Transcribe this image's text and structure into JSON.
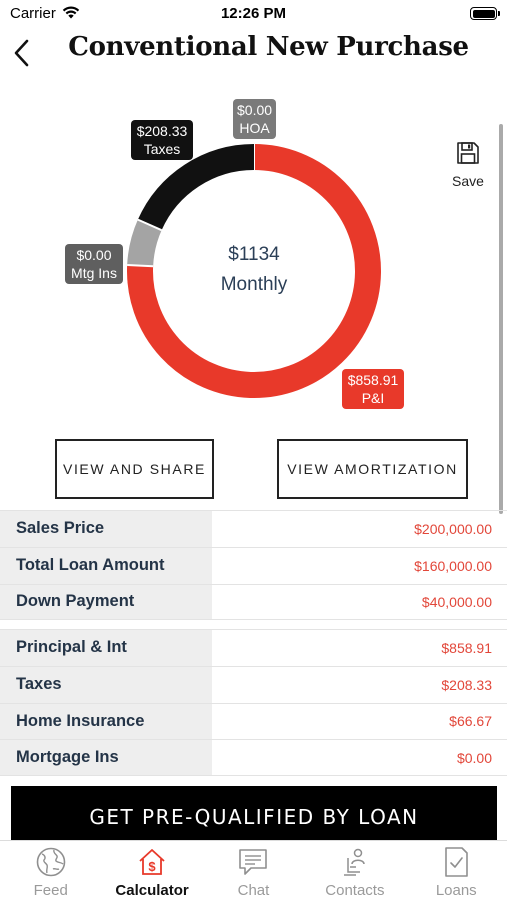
{
  "status_bar": {
    "carrier": "Carrier",
    "time": "12:26 PM"
  },
  "nav": {
    "title": "Conventional New Purchase",
    "back_icon": "chevron-left-icon"
  },
  "chart_data": {
    "type": "pie",
    "donut": true,
    "center_amount": "$1134",
    "center_label": "Monthly",
    "slices": [
      {
        "name": "HOA",
        "value": 0.0,
        "value_label": "$0.00",
        "color": "#7a7a7a"
      },
      {
        "name": "P&I",
        "value": 858.91,
        "value_label": "$858.91",
        "color": "#e8392a"
      },
      {
        "name": "Mtg Ins",
        "value": 0.0,
        "value_label": "$0.00",
        "color": "#5f5f5f"
      },
      {
        "name": "Home Insurance",
        "value": 66.67,
        "value_label": "",
        "color": "#a4a4a4"
      },
      {
        "name": "Taxes",
        "value": 208.33,
        "value_label": "$208.33",
        "color": "#111111"
      }
    ]
  },
  "save": {
    "label": "Save",
    "icon": "save-icon"
  },
  "buttons": {
    "view_share": "VIEW AND SHARE",
    "view_amortization": "VIEW AMORTIZATION"
  },
  "table_loan": [
    {
      "label": "Sales Price",
      "value": "$200,000.00"
    },
    {
      "label": "Total Loan Amount",
      "value": "$160,000.00"
    },
    {
      "label": "Down Payment",
      "value": "$40,000.00"
    }
  ],
  "table_payment": [
    {
      "label": "Principal & Int",
      "value": "$858.91"
    },
    {
      "label": "Taxes",
      "value": "$208.33"
    },
    {
      "label": "Home Insurance",
      "value": "$66.67"
    },
    {
      "label": "Mortgage Ins",
      "value": "$0.00"
    }
  ],
  "cta": {
    "label": "GET PRE-QUALIFIED BY LOAN"
  },
  "tabs": [
    {
      "label": "Feed",
      "icon": "globe-icon",
      "active": false
    },
    {
      "label": "Calculator",
      "icon": "calculator-house-icon",
      "active": true
    },
    {
      "label": "Chat",
      "icon": "chat-icon",
      "active": false
    },
    {
      "label": "Contacts",
      "icon": "contacts-icon",
      "active": false
    },
    {
      "label": "Loans",
      "icon": "loans-checklist-icon",
      "active": false
    }
  ],
  "colors": {
    "accent": "#e8392a",
    "text": "#243447",
    "value": "#e2473a"
  }
}
